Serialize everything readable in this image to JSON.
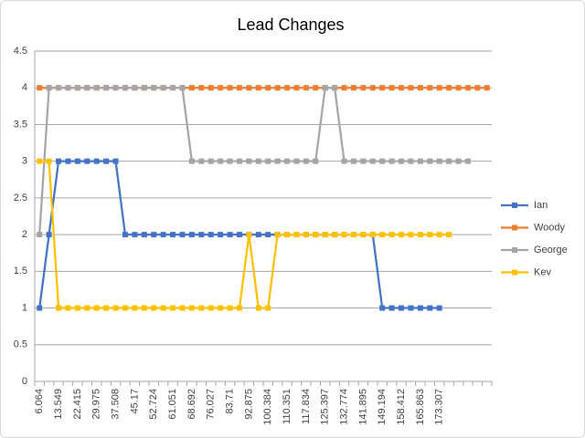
{
  "chart_data": {
    "type": "line",
    "title": "Lead Changes",
    "categories": [
      "6.064",
      null,
      "13.549",
      null,
      "22.415",
      null,
      "29.975",
      null,
      "37.508",
      null,
      "45.17",
      null,
      "52.724",
      null,
      "61.051",
      null,
      "68.692",
      null,
      "76.027",
      null,
      "83.71",
      null,
      "92.875",
      null,
      "100.384",
      null,
      "110.351",
      null,
      "117.834",
      null,
      "125.397",
      null,
      "132.774",
      null,
      "141.895",
      null,
      "149.194",
      null,
      "158.412",
      null,
      "165.863",
      null,
      "173.307",
      null,
      null,
      null,
      null,
      null
    ],
    "series": [
      {
        "name": "Ian",
        "color": "#4472c4",
        "values": [
          1,
          2,
          3,
          3,
          3,
          3,
          3,
          3,
          3,
          2,
          2,
          2,
          2,
          2,
          2,
          2,
          2,
          2,
          2,
          2,
          2,
          2,
          2,
          2,
          2,
          2,
          2,
          2,
          2,
          2,
          2,
          2,
          2,
          2,
          2,
          2,
          1,
          1,
          1,
          1,
          1,
          1,
          1,
          null,
          null,
          null,
          null,
          null
        ]
      },
      {
        "name": "Woody",
        "color": "#ed7d31",
        "values": [
          4,
          4,
          4,
          4,
          4,
          4,
          4,
          4,
          4,
          4,
          4,
          4,
          4,
          4,
          4,
          4,
          4,
          4,
          4,
          4,
          4,
          4,
          4,
          4,
          4,
          4,
          4,
          4,
          4,
          4,
          4,
          4,
          4,
          4,
          4,
          4,
          4,
          4,
          4,
          4,
          4,
          4,
          4,
          4,
          4,
          4,
          4,
          4
        ]
      },
      {
        "name": "George",
        "color": "#a5a5a5",
        "values": [
          2,
          4,
          4,
          4,
          4,
          4,
          4,
          4,
          4,
          4,
          4,
          4,
          4,
          4,
          4,
          4,
          3,
          3,
          3,
          3,
          3,
          3,
          3,
          3,
          3,
          3,
          3,
          3,
          3,
          3,
          4,
          4,
          3,
          3,
          3,
          3,
          3,
          3,
          3,
          3,
          3,
          3,
          3,
          3,
          3,
          3,
          null,
          null
        ]
      },
      {
        "name": "Kev",
        "color": "#ffc000",
        "values": [
          3,
          3,
          1,
          1,
          1,
          1,
          1,
          1,
          1,
          1,
          1,
          1,
          1,
          1,
          1,
          1,
          1,
          1,
          1,
          1,
          1,
          1,
          2,
          1,
          1,
          2,
          2,
          2,
          2,
          2,
          2,
          2,
          2,
          2,
          2,
          2,
          2,
          2,
          2,
          2,
          2,
          2,
          2,
          2,
          null,
          null,
          null,
          null
        ]
      }
    ],
    "ylim": [
      0,
      4.5
    ],
    "yticks": [
      0,
      0.5,
      1,
      1.5,
      2,
      2.5,
      3,
      3.5,
      4,
      4.5
    ],
    "grid": true,
    "legend": "right"
  }
}
